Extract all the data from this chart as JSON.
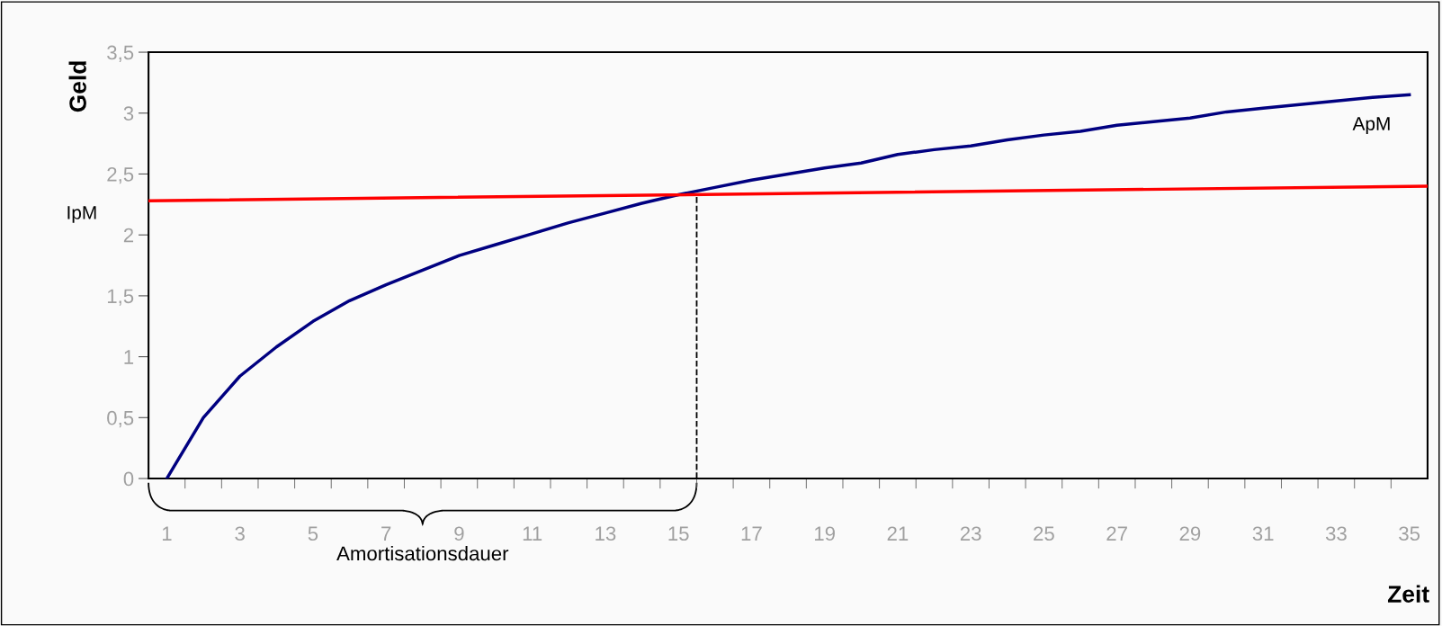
{
  "chart_data": {
    "type": "line",
    "xlabel": "Zeit",
    "ylabel": "Geld",
    "xlim": [
      0.5,
      35.5
    ],
    "ylim": [
      0,
      3.5
    ],
    "xticks": [
      1,
      3,
      5,
      7,
      9,
      11,
      13,
      15,
      17,
      19,
      21,
      23,
      25,
      27,
      29,
      31,
      33,
      35,
      {
        "value": 1.5,
        "label": null
      },
      {
        "value": 2.5,
        "label": null
      },
      {
        "value": 3.5,
        "label": null
      },
      {
        "value": 4.5,
        "label": null
      },
      {
        "value": 5.5,
        "label": null
      },
      {
        "value": 6.5,
        "label": null
      },
      {
        "value": 7.5,
        "label": null
      },
      {
        "value": 8.5,
        "label": null
      },
      {
        "value": 9.5,
        "label": null
      },
      {
        "value": 10.5,
        "label": null
      },
      {
        "value": 11.5,
        "label": null
      },
      {
        "value": 12.5,
        "label": null
      },
      {
        "value": 13.5,
        "label": null
      },
      {
        "value": 14.5,
        "label": null
      },
      {
        "value": 15.5,
        "label": null
      },
      {
        "value": 16.5,
        "label": null
      },
      {
        "value": 17.5,
        "label": null
      },
      {
        "value": 18.5,
        "label": null
      },
      {
        "value": 19.5,
        "label": null
      },
      {
        "value": 20.5,
        "label": null
      },
      {
        "value": 21.5,
        "label": null
      },
      {
        "value": 22.5,
        "label": null
      },
      {
        "value": 23.5,
        "label": null
      },
      {
        "value": 24.5,
        "label": null
      },
      {
        "value": 25.5,
        "label": null
      },
      {
        "value": 26.5,
        "label": null
      },
      {
        "value": 27.5,
        "label": null
      },
      {
        "value": 28.5,
        "label": null
      },
      {
        "value": 29.5,
        "label": null
      },
      {
        "value": 30.5,
        "label": null
      },
      {
        "value": 31.5,
        "label": null
      },
      {
        "value": 32.5,
        "label": null
      },
      {
        "value": 33.5,
        "label": null
      },
      {
        "value": 34.5,
        "label": null
      }
    ],
    "yticks": [
      0,
      {
        "value": 0.5,
        "label": "0,5"
      },
      1,
      {
        "value": 1.5,
        "label": "1,5"
      },
      2,
      {
        "value": 2.5,
        "label": "2,5"
      },
      3,
      {
        "value": 3.5,
        "label": "3,5"
      }
    ],
    "grid": false,
    "legend": false,
    "marker": "none",
    "line_style": "solid",
    "series": [
      {
        "name": "ApM",
        "color": "#000080",
        "x": [
          1,
          2,
          3,
          4,
          5,
          6,
          7,
          8,
          9,
          10,
          11,
          12,
          13,
          14,
          15,
          16,
          17,
          18,
          19,
          20,
          21,
          22,
          23,
          24,
          25,
          26,
          27,
          28,
          29,
          30,
          31,
          32,
          33,
          34,
          35
        ],
        "values": [
          0,
          0.5,
          0.84,
          1.08,
          1.29,
          1.46,
          1.59,
          1.71,
          1.83,
          1.92,
          2.01,
          2.1,
          2.18,
          2.26,
          2.33,
          2.39,
          2.45,
          2.5,
          2.55,
          2.59,
          2.66,
          2.7,
          2.73,
          2.78,
          2.82,
          2.85,
          2.9,
          2.93,
          2.96,
          3.01,
          3.04,
          3.07,
          3.1,
          3.13,
          3.15
        ]
      },
      {
        "name": "IpM",
        "color": "#ff0000",
        "x": [
          0.5,
          35.5
        ],
        "values": [
          2.28,
          2.4
        ]
      }
    ],
    "ref_lines": [
      {
        "axis": "x",
        "value": 15.5,
        "color": "#000000",
        "line_style": "dashed",
        "label": null
      }
    ],
    "annotations": [
      "Amortisationsdauer"
    ]
  }
}
